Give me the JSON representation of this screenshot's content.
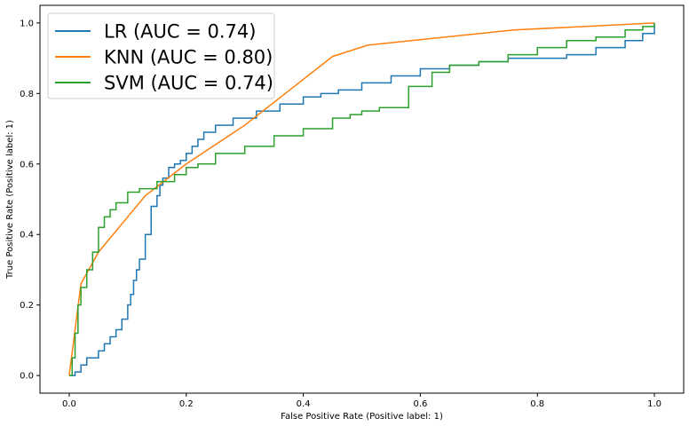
{
  "chart_data": {
    "type": "line",
    "title": "",
    "xlabel": "False Positive Rate (Positive label: 1)",
    "ylabel": "True Positive Rate (Positive label: 1)",
    "xlim": [
      -0.05,
      1.05
    ],
    "ylim": [
      -0.05,
      1.05
    ],
    "xticks": [
      0.0,
      0.2,
      0.4,
      0.6,
      0.8,
      1.0
    ],
    "yticks": [
      0.0,
      0.2,
      0.4,
      0.6,
      0.8,
      1.0
    ],
    "xtick_labels": [
      "0.0",
      "0.2",
      "0.4",
      "0.6",
      "0.8",
      "1.0"
    ],
    "ytick_labels": [
      "0.0",
      "0.2",
      "0.4",
      "0.6",
      "0.8",
      "1.0"
    ],
    "grid": false,
    "legend_position": "top-left",
    "series": [
      {
        "name": "LR (AUC = 0.74)",
        "color": "#1f77b4",
        "x": [
          0.0,
          0.01,
          0.02,
          0.03,
          0.05,
          0.06,
          0.07,
          0.08,
          0.09,
          0.1,
          0.105,
          0.11,
          0.115,
          0.12,
          0.13,
          0.14,
          0.15,
          0.155,
          0.16,
          0.17,
          0.18,
          0.19,
          0.2,
          0.21,
          0.22,
          0.23,
          0.25,
          0.28,
          0.32,
          0.36,
          0.4,
          0.43,
          0.46,
          0.5,
          0.55,
          0.6,
          0.65,
          0.7,
          0.75,
          0.8,
          0.85,
          0.9,
          0.95,
          0.98,
          1.0
        ],
        "y": [
          0.0,
          0.01,
          0.03,
          0.05,
          0.07,
          0.09,
          0.11,
          0.13,
          0.16,
          0.2,
          0.23,
          0.27,
          0.3,
          0.33,
          0.4,
          0.48,
          0.51,
          0.54,
          0.56,
          0.59,
          0.6,
          0.61,
          0.63,
          0.65,
          0.67,
          0.69,
          0.71,
          0.73,
          0.75,
          0.77,
          0.79,
          0.8,
          0.81,
          0.83,
          0.85,
          0.87,
          0.88,
          0.89,
          0.9,
          0.9,
          0.91,
          0.93,
          0.95,
          0.97,
          1.0
        ]
      },
      {
        "name": "KNN (AUC = 0.80)",
        "color": "#ff7f0e",
        "x": [
          0.0,
          0.02,
          0.05,
          0.13,
          0.2,
          0.3,
          0.4,
          0.45,
          0.51,
          0.76,
          1.0
        ],
        "y": [
          0.0,
          0.26,
          0.35,
          0.51,
          0.6,
          0.71,
          0.84,
          0.905,
          0.937,
          0.98,
          1.0
        ],
        "line_style": "linear"
      },
      {
        "name": "SVM (AUC = 0.74)",
        "color": "#2ca02c",
        "x": [
          0.0,
          0.005,
          0.01,
          0.015,
          0.02,
          0.03,
          0.04,
          0.05,
          0.06,
          0.07,
          0.08,
          0.1,
          0.12,
          0.15,
          0.18,
          0.2,
          0.22,
          0.25,
          0.3,
          0.35,
          0.4,
          0.45,
          0.48,
          0.5,
          0.53,
          0.58,
          0.62,
          0.65,
          0.7,
          0.75,
          0.8,
          0.85,
          0.9,
          0.95,
          0.98,
          1.0
        ],
        "y": [
          0.0,
          0.05,
          0.12,
          0.2,
          0.25,
          0.3,
          0.35,
          0.42,
          0.45,
          0.47,
          0.49,
          0.52,
          0.53,
          0.55,
          0.57,
          0.59,
          0.6,
          0.63,
          0.65,
          0.68,
          0.7,
          0.73,
          0.74,
          0.75,
          0.76,
          0.82,
          0.86,
          0.88,
          0.89,
          0.91,
          0.93,
          0.95,
          0.96,
          0.98,
          0.99,
          1.0
        ]
      }
    ]
  }
}
